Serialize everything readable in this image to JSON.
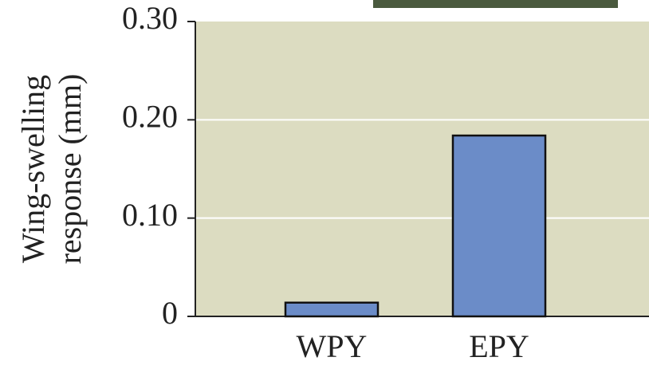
{
  "chart_data": {
    "type": "bar",
    "ylabel": [
      "Wing-swelling",
      "response (mm)"
    ],
    "categories": [
      "WPY",
      "EPY"
    ],
    "values": [
      0.014,
      0.184
    ],
    "color": "#6b8cc8",
    "ylim": [
      0,
      0.3
    ],
    "yticks": [
      0,
      {
        "value": 0.1,
        "label": "0.10"
      },
      {
        "value": 0.2,
        "label": "0.20"
      },
      {
        "value": 0.3,
        "label": "0.30"
      }
    ],
    "grid": true
  }
}
